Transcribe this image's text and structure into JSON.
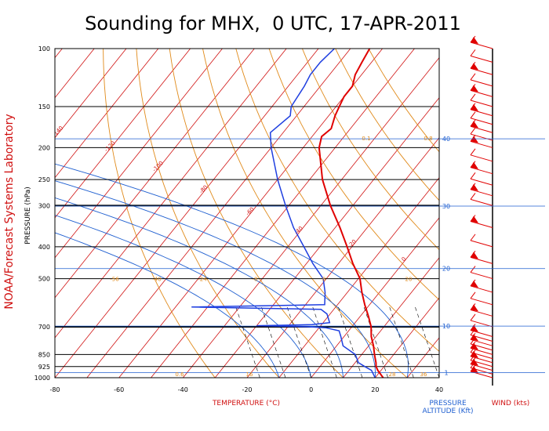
{
  "chart_data": {
    "type": "skew-t",
    "title": "Sounding for MHX,  0 UTC, 17-APR-2011",
    "credit": "NOAA/Forecast Systems Laboratory",
    "xlabel": "TEMPERATURE (°C)",
    "ylabel": "PRESSURE (hPa)",
    "xlim": [
      -80,
      40
    ],
    "x_ticks": [
      "-80",
      "-60",
      "-40",
      "-20",
      "0",
      "20",
      "40"
    ],
    "ylim": [
      1000,
      100
    ],
    "y_ticks": [
      "100",
      "150",
      "200",
      "250",
      "300",
      "400",
      "500",
      "700",
      "850",
      "925",
      "1000"
    ],
    "right_labels": {
      "pressure": "PRESSURE",
      "altitude": "ALTITUDE (Kft)",
      "wind": "WIND (kts)"
    },
    "altitude_ticks": [
      {
        "label": "1",
        "p": 965
      },
      {
        "label": "10",
        "p": 697
      },
      {
        "label": "20",
        "p": 466
      },
      {
        "label": "30",
        "p": 301
      },
      {
        "label": "40",
        "p": 188
      }
    ],
    "isotherms": [
      -160,
      -150,
      -140,
      -130,
      -120,
      -110,
      -100,
      -90,
      -80,
      -70,
      -60,
      -50,
      -40,
      -30,
      -20,
      -10,
      0,
      10,
      20,
      30,
      40
    ],
    "isotherm_labels": [
      "-160",
      "-140",
      "-120",
      "-100",
      "-80",
      "-60",
      "-40",
      "-20",
      "0"
    ],
    "dry_adiabats_C": [
      -30,
      -10,
      10,
      30,
      50,
      70,
      90,
      110,
      130
    ],
    "adiabat_labels": [
      "-56",
      "-40",
      "-24",
      "-8",
      "8",
      "20"
    ],
    "mixing_ratio_labels": [
      "0.1",
      "0.8"
    ],
    "moist_adiabat_labels": [
      "-10",
      "0",
      "10",
      "20",
      "30"
    ],
    "bottom_labels": [
      "0.6",
      "16",
      "28",
      "36"
    ],
    "temperature_profile": [
      [
        1000,
        22.5
      ],
      [
        950,
        19
      ],
      [
        925,
        17.5
      ],
      [
        900,
        16.5
      ],
      [
        850,
        14
      ],
      [
        800,
        11.5
      ],
      [
        750,
        8.5
      ],
      [
        700,
        6
      ],
      [
        650,
        2.5
      ],
      [
        600,
        -1.5
      ],
      [
        550,
        -5.5
      ],
      [
        500,
        -9.5
      ],
      [
        450,
        -15.5
      ],
      [
        400,
        -21.5
      ],
      [
        350,
        -28.5
      ],
      [
        300,
        -37
      ],
      [
        250,
        -46
      ],
      [
        200,
        -55
      ],
      [
        185,
        -57
      ],
      [
        175,
        -56
      ],
      [
        160,
        -58
      ],
      [
        150,
        -59
      ],
      [
        140,
        -60
      ],
      [
        130,
        -60
      ],
      [
        120,
        -62
      ],
      [
        110,
        -63
      ],
      [
        100,
        -64
      ]
    ],
    "dewpoint_profile": [
      [
        1000,
        20
      ],
      [
        950,
        17
      ],
      [
        925,
        14
      ],
      [
        900,
        11
      ],
      [
        850,
        8
      ],
      [
        800,
        2
      ],
      [
        750,
        -1
      ],
      [
        720,
        -3
      ],
      [
        705,
        -8
      ],
      [
        700,
        -14
      ],
      [
        695,
        -30
      ],
      [
        690,
        -13
      ],
      [
        680,
        -8
      ],
      [
        640,
        -11
      ],
      [
        620,
        -14
      ],
      [
        610,
        -55
      ],
      [
        600,
        -14
      ],
      [
        550,
        -17
      ],
      [
        500,
        -21
      ],
      [
        450,
        -28
      ],
      [
        400,
        -35
      ],
      [
        350,
        -43
      ],
      [
        300,
        -51
      ],
      [
        250,
        -60
      ],
      [
        200,
        -70
      ],
      [
        180,
        -74
      ],
      [
        160,
        -72
      ],
      [
        150,
        -74
      ],
      [
        130,
        -75
      ],
      [
        120,
        -76
      ],
      [
        110,
        -76
      ],
      [
        100,
        -75
      ]
    ],
    "wind_barb_pressures": [
      1000,
      975,
      950,
      925,
      900,
      875,
      850,
      825,
      800,
      775,
      750,
      700,
      650,
      600,
      550,
      500,
      450,
      400,
      350,
      300,
      280,
      260,
      240,
      220,
      200,
      190,
      180,
      170,
      160,
      150,
      140,
      130,
      120,
      110,
      100
    ]
  },
  "colors": {
    "title": "#000000",
    "credit": "#d01010",
    "isobar": "#000000",
    "isotherm": "#d01010",
    "dry_adiabat": "#e08a1a",
    "moist_adiabat": "#1f5fd0",
    "mixing_ratio": "#000000",
    "temperature": "#e00000",
    "dewpoint": "#1f3fe0",
    "altitude": "#1f5fd0",
    "wind": "#e00000"
  }
}
